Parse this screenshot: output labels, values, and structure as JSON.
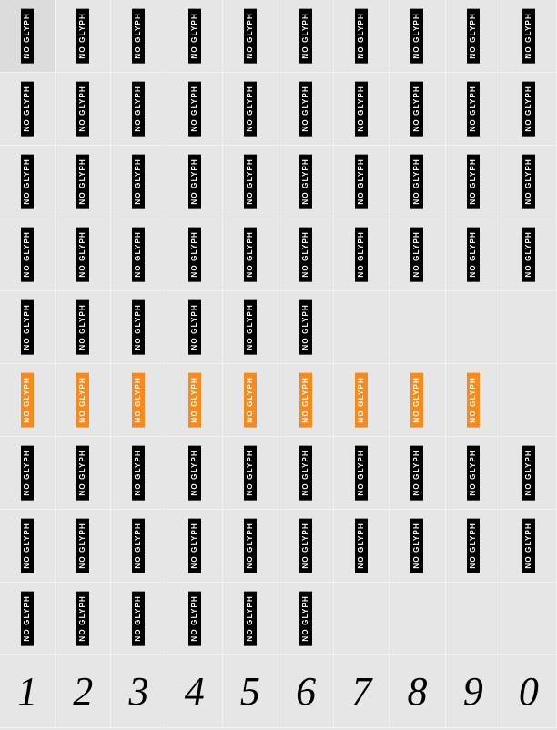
{
  "grid": {
    "cols": 10,
    "rows": 10,
    "cell_bg": "#e6e6e6",
    "border_color": "#f2f2f2",
    "glyph_label": "NO GLYPH",
    "glyph_bg_black": "#000000",
    "glyph_bg_orange": "#f58a1f",
    "glyph_text_color": "#ffffff",
    "glyph_fontsize": 8
  },
  "rows": [
    {
      "kind": "noglyph",
      "count": 10,
      "color": "black"
    },
    {
      "kind": "noglyph",
      "count": 10,
      "color": "black"
    },
    {
      "kind": "noglyph",
      "count": 10,
      "color": "black"
    },
    {
      "kind": "noglyph",
      "count": 10,
      "color": "black"
    },
    {
      "kind": "noglyph",
      "count": 6,
      "color": "black"
    },
    {
      "kind": "noglyph",
      "count": 9,
      "color": "orange"
    },
    {
      "kind": "noglyph",
      "count": 10,
      "color": "black"
    },
    {
      "kind": "noglyph",
      "count": 10,
      "color": "black"
    },
    {
      "kind": "noglyph",
      "count": 6,
      "color": "black"
    },
    {
      "kind": "digits",
      "values": [
        "1",
        "2",
        "3",
        "4",
        "5",
        "6",
        "7",
        "8",
        "9",
        "0"
      ]
    }
  ],
  "digits_style": {
    "fontsize": 44,
    "color": "#000000",
    "family": "Georgia, serif"
  }
}
